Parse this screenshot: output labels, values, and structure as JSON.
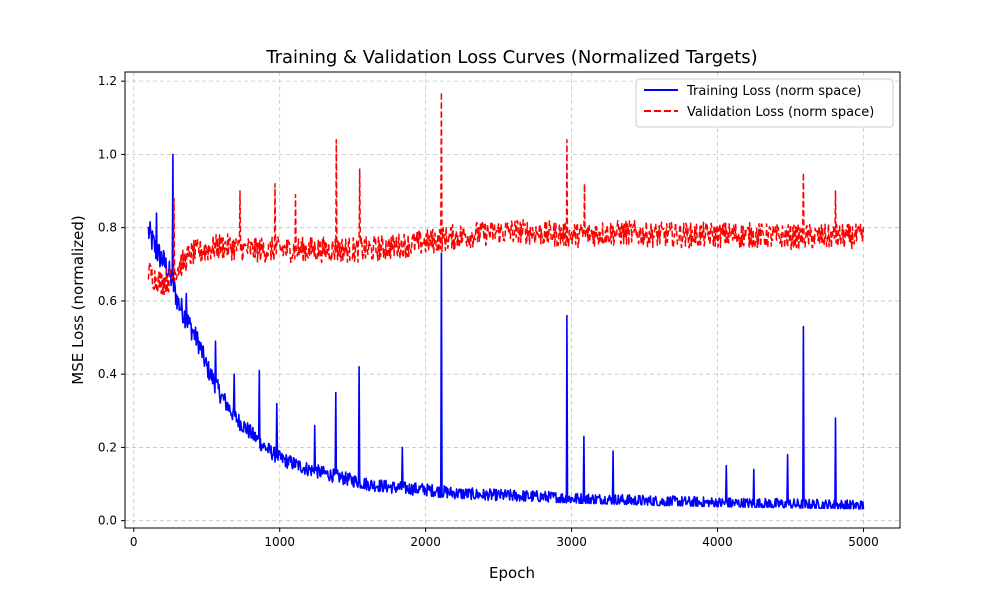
{
  "colors": {
    "training": "#0000ff",
    "validation": "#ff0000",
    "grid": "#b0b0b0",
    "axes": "#000000",
    "background": "#ffffff"
  },
  "chart_data": {
    "type": "line",
    "title": "Training & Validation Loss Curves (Normalized Targets)",
    "xlabel": "Epoch",
    "ylabel": "MSE Loss (normalized)",
    "xlim": [
      -60,
      5250
    ],
    "ylim": [
      -0.02,
      1.225
    ],
    "xticks": [
      0,
      1000,
      2000,
      3000,
      4000,
      5000
    ],
    "xtick_labels": [
      "0",
      "1000",
      "2000",
      "3000",
      "4000",
      "5000"
    ],
    "yticks": [
      0.0,
      0.2,
      0.4,
      0.6,
      0.8,
      1.0,
      1.2
    ],
    "ytick_labels": [
      "0.0",
      "0.2",
      "0.4",
      "0.6",
      "0.8",
      "1.0",
      "1.2"
    ],
    "grid": true,
    "legend_position": "top-right",
    "series": [
      {
        "name": "Training Loss (norm space)",
        "style": "solid",
        "color": "#0000ff",
        "x": [
          100,
          150,
          200,
          250,
          300,
          350,
          400,
          450,
          500,
          550,
          600,
          700,
          800,
          900,
          1000,
          1200,
          1400,
          1600,
          1800,
          2000,
          2200,
          2400,
          2600,
          2800,
          3000,
          3200,
          3400,
          3600,
          3800,
          4000,
          4200,
          4400,
          4600,
          4800,
          5000
        ],
        "y": [
          0.79,
          0.74,
          0.71,
          0.67,
          0.6,
          0.56,
          0.52,
          0.48,
          0.42,
          0.38,
          0.34,
          0.28,
          0.24,
          0.2,
          0.17,
          0.14,
          0.12,
          0.1,
          0.09,
          0.085,
          0.075,
          0.07,
          0.068,
          0.065,
          0.06,
          0.058,
          0.055,
          0.052,
          0.05,
          0.048,
          0.046,
          0.045,
          0.043,
          0.042,
          0.04
        ],
        "spikes": [
          {
            "x": 155,
            "y": 0.84
          },
          {
            "x": 270,
            "y": 1.0
          },
          {
            "x": 360,
            "y": 0.62
          },
          {
            "x": 560,
            "y": 0.49
          },
          {
            "x": 690,
            "y": 0.4
          },
          {
            "x": 860,
            "y": 0.41
          },
          {
            "x": 980,
            "y": 0.32
          },
          {
            "x": 1240,
            "y": 0.26
          },
          {
            "x": 1385,
            "y": 0.35
          },
          {
            "x": 1545,
            "y": 0.42
          },
          {
            "x": 1840,
            "y": 0.2
          },
          {
            "x": 2110,
            "y": 0.73
          },
          {
            "x": 2970,
            "y": 0.56
          },
          {
            "x": 3085,
            "y": 0.23
          },
          {
            "x": 3285,
            "y": 0.19
          },
          {
            "x": 4060,
            "y": 0.15
          },
          {
            "x": 4250,
            "y": 0.14
          },
          {
            "x": 4480,
            "y": 0.18
          },
          {
            "x": 4590,
            "y": 0.53
          },
          {
            "x": 4810,
            "y": 0.28
          }
        ],
        "noise": 0.025
      },
      {
        "name": "Validation Loss (norm space)",
        "style": "dashed",
        "color": "#ff0000",
        "x": [
          100,
          150,
          200,
          250,
          300,
          350,
          400,
          500,
          600,
          800,
          1000,
          1200,
          1400,
          1600,
          1800,
          2000,
          2200,
          2400,
          2600,
          2800,
          3000,
          3200,
          3400,
          3600,
          3800,
          4000,
          4200,
          4400,
          4600,
          4800,
          5000
        ],
        "y": [
          0.68,
          0.66,
          0.65,
          0.66,
          0.69,
          0.71,
          0.73,
          0.74,
          0.75,
          0.74,
          0.74,
          0.74,
          0.74,
          0.74,
          0.75,
          0.76,
          0.775,
          0.785,
          0.79,
          0.785,
          0.78,
          0.785,
          0.785,
          0.78,
          0.78,
          0.78,
          0.78,
          0.775,
          0.775,
          0.775,
          0.775
        ],
        "spikes": [
          {
            "x": 275,
            "y": 0.88
          },
          {
            "x": 730,
            "y": 0.9
          },
          {
            "x": 970,
            "y": 0.92
          },
          {
            "x": 1110,
            "y": 0.89
          },
          {
            "x": 1390,
            "y": 1.04
          },
          {
            "x": 1550,
            "y": 0.96
          },
          {
            "x": 2110,
            "y": 1.17
          },
          {
            "x": 2970,
            "y": 1.04
          },
          {
            "x": 3090,
            "y": 0.92
          },
          {
            "x": 4590,
            "y": 0.95
          },
          {
            "x": 4810,
            "y": 0.9
          }
        ],
        "noise": 0.035
      }
    ]
  }
}
